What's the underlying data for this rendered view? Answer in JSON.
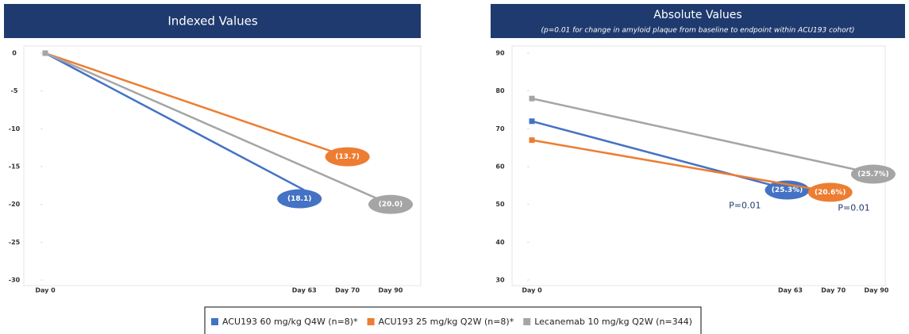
{
  "chart_data": [
    {
      "type": "line",
      "title": "Indexed Values",
      "categories": [
        "Day 0",
        "Day 63",
        "Day 70",
        "Day 90"
      ],
      "ylim": [
        -30,
        0
      ],
      "yticks": [
        0,
        -5,
        -10,
        -15,
        -20,
        -25,
        -30
      ],
      "series": [
        {
          "name": "ACU193 60 mg/kg Q4W (n=8)*",
          "color": "#4472c4",
          "x": [
            "Day 0",
            "Day 63"
          ],
          "values": [
            0,
            -18.1
          ],
          "value_labels": [
            null,
            "(18.1)"
          ]
        },
        {
          "name": "ACU193 25 mg/kg Q2W (n=8)*",
          "color": "#ed7d31",
          "x": [
            "Day 0",
            "Day 70"
          ],
          "values": [
            0,
            -13.7
          ],
          "value_labels": [
            null,
            "(13.7)"
          ]
        },
        {
          "name": "Lecanemab 10 mg/kg Q2W (n=344)",
          "color": "#a5a5a5",
          "x": [
            "Day 0",
            "Day 90"
          ],
          "values": [
            0,
            -20.0
          ],
          "value_labels": [
            null,
            "(20.0)"
          ]
        }
      ]
    },
    {
      "type": "line",
      "title": "Absolute Values",
      "subtitle": "(p=0.01 for change in amyloid plaque from baseline to endpoint within ACU193 cohort)",
      "categories": [
        "Day 0",
        "Day 63",
        "Day 70",
        "Day 90"
      ],
      "ylim": [
        30,
        90
      ],
      "yticks": [
        30,
        40,
        50,
        60,
        70,
        80,
        90
      ],
      "series": [
        {
          "name": "ACU193 60 mg/kg Q4W (n=8)*",
          "color": "#4472c4",
          "x": [
            "Day 0",
            "Day 63"
          ],
          "values": [
            72,
            53.8
          ],
          "change_label": "(25.3%)",
          "p_label": "P=0.01"
        },
        {
          "name": "ACU193 25 mg/kg Q2W (n=8)*",
          "color": "#ed7d31",
          "x": [
            "Day 0",
            "Day 70"
          ],
          "values": [
            67,
            53.2
          ],
          "change_label": "(20.6%)",
          "p_label": "P=0.01"
        },
        {
          "name": "Lecanemab 10 mg/kg Q2W (n=344)",
          "color": "#a5a5a5",
          "x": [
            "Day 0",
            "Day 90"
          ],
          "values": [
            78,
            58
          ],
          "change_label": "(25.7%)"
        }
      ]
    }
  ]
}
